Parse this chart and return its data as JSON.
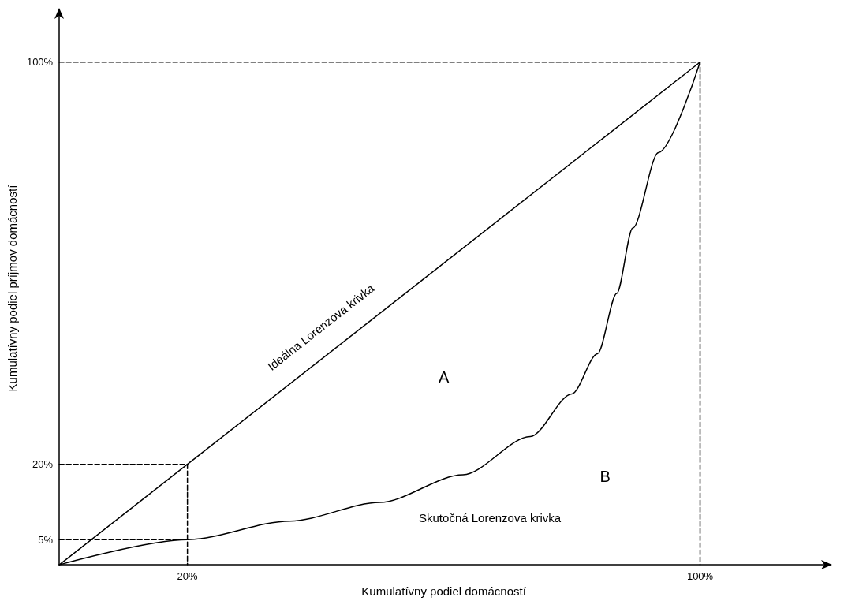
{
  "chart_data": {
    "type": "line",
    "xlabel": "Kumulatívny podiel domácností",
    "ylabel": "Kumulatívny podiel príjmov domácností",
    "xlim": [
      0,
      120
    ],
    "ylim": [
      0,
      110
    ],
    "xticks": [
      {
        "value": 20,
        "label": "20%"
      },
      {
        "value": 100,
        "label": "100%"
      }
    ],
    "yticks": [
      {
        "value": 5,
        "label": "5%"
      },
      {
        "value": 20,
        "label": "20%"
      },
      {
        "value": 100,
        "label": "100%"
      }
    ],
    "grid": false,
    "marker": "none",
    "series": [
      {
        "color": "#000000",
        "line_style": "solid",
        "x": [
          0,
          20,
          100
        ],
        "values": [
          0,
          20,
          100
        ]
      },
      {
        "color": "#000000",
        "line_style": "solid",
        "x": [
          0,
          20,
          36,
          50,
          63,
          73.5,
          80,
          84,
          87,
          89.5,
          93.5,
          100
        ],
        "values": [
          0,
          5,
          8.7,
          12.4,
          17.9,
          25.5,
          34,
          42,
          54,
          67,
          82,
          100
        ]
      },
      {
        "color": "#000000",
        "line_style": "dashed",
        "x": [
          0,
          20,
          20
        ],
        "values": [
          20,
          20,
          0
        ]
      },
      {
        "color": "#000000",
        "line_style": "dashed",
        "x": [
          0,
          20
        ],
        "values": [
          5,
          5
        ]
      },
      {
        "color": "#000000",
        "line_style": "dashed",
        "x": [
          0,
          100,
          100
        ],
        "values": [
          100,
          100,
          0
        ]
      }
    ],
    "annotations": [
      "Ideálna Lorenzova krivka",
      "A",
      "B",
      "Skutočná Lorenzova krivka"
    ]
  }
}
